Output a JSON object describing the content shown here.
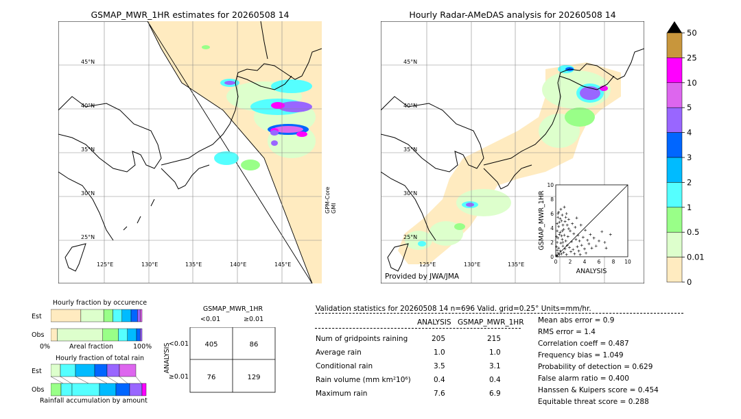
{
  "left_map": {
    "title": "GSMAP_MWR_1HR estimates for 20260508 14",
    "lat_labels": [
      "45°N",
      "40°N",
      "35°N",
      "30°N",
      "25°N"
    ],
    "lon_labels": [
      "125°E",
      "130°E",
      "135°E",
      "140°E",
      "145°E"
    ],
    "side_label_1": "GPM-Core",
    "side_label_2": "GMI"
  },
  "right_map": {
    "title": "Hourly Radar-AMeDAS analysis for 20260508 14",
    "lat_labels": [
      "45°N",
      "40°N",
      "35°N",
      "30°N",
      "25°N"
    ],
    "lon_labels": [
      "125°E",
      "130°E",
      "135°E"
    ],
    "credit": "Provided by JWA/JMA"
  },
  "colorbar": {
    "labels": [
      "50",
      "25",
      "10",
      "5",
      "4",
      "3",
      "2",
      "1",
      "0.5",
      "0.01",
      "0"
    ],
    "colors": [
      "#c8963c",
      "#ff00ff",
      "#dd66ee",
      "#9966ff",
      "#0066ff",
      "#00bbff",
      "#55ffff",
      "#99ff88",
      "#ddffcc",
      "#ffebc0"
    ]
  },
  "palette": {
    "land_outline": "#000000",
    "no_coverage": "#ffffff",
    "c001": "#ffebc0",
    "c05": "#ddffcc",
    "c1": "#99ff88",
    "c2": "#55ffff",
    "c3": "#00bbff",
    "c4": "#0066ff",
    "c5": "#9966ff",
    "c10": "#dd66ee",
    "c25": "#ff00ff",
    "c50": "#c8963c"
  },
  "scatter": {
    "xlabel": "ANALYSIS",
    "ylabel": "GSMAP_MWR_1HR",
    "ticks": [
      "0",
      "2",
      "4",
      "6",
      "8",
      "10"
    ],
    "xlim": [
      0,
      10
    ],
    "ylim": [
      0,
      10
    ]
  },
  "fraction_occurrence": {
    "title": "Hourly fraction by occurence",
    "rows": [
      "Est",
      "Obs"
    ],
    "axis_left": "0%",
    "axis_mid": "Areal fraction",
    "axis_right": "100%",
    "est_segments": [
      0.33,
      0.25,
      0.1,
      0.1,
      0.1,
      0.07,
      0.03,
      0.02
    ],
    "obs_segments": [
      0.07,
      0.5,
      0.17,
      0.1,
      0.1,
      0.04,
      0.02
    ]
  },
  "fraction_total": {
    "title": "Hourly fraction of total rain",
    "rows": [
      "Est",
      "Obs"
    ],
    "footer": "Rainfall accumulation by amount"
  },
  "contingency": {
    "title": "GSMAP_MWR_1HR",
    "col_lt": "<0.01",
    "col_ge": "≥0.01",
    "row_lt": "<0.01",
    "row_ge": "≥0.01",
    "side_label": "ANALYSIS",
    "cells": [
      "405",
      "86",
      "76",
      "129"
    ]
  },
  "validation": {
    "header": "Validation statistics for 20260508 14  n=696 Valid. grid=0.25° Units=mm/hr.",
    "col_analysis": "ANALYSIS",
    "col_gsmap": "GSMAP_MWR_1HR",
    "rows": [
      {
        "label": "Num of gridpoints raining",
        "analysis": "205",
        "gsmap": "215"
      },
      {
        "label": "Average rain",
        "analysis": "1.0",
        "gsmap": "1.0"
      },
      {
        "label": "Conditional rain",
        "analysis": "3.5",
        "gsmap": "3.1"
      },
      {
        "label": "Rain volume (mm km²10⁶)",
        "analysis": "0.4",
        "gsmap": "0.4"
      },
      {
        "label": "Maximum rain",
        "analysis": "7.6",
        "gsmap": "6.9"
      }
    ],
    "scores": [
      "Mean abs error =    0.9",
      "RMS error =    1.4",
      "Correlation coeff =  0.487",
      "Frequency bias =  1.049",
      "Probability of detection =  0.629",
      "False alarm ratio =  0.400",
      "Hanssen & Kuipers score =  0.454",
      "Equitable threat score =  0.288"
    ]
  },
  "chart_data": {
    "type": "scatter",
    "xlabel": "ANALYSIS",
    "ylabel": "GSMAP_MWR_1HR",
    "xlim": [
      0,
      10
    ],
    "ylim": [
      0,
      10
    ],
    "points": [
      [
        0.1,
        0.2
      ],
      [
        0.2,
        0.1
      ],
      [
        0.3,
        0.5
      ],
      [
        0.5,
        0.3
      ],
      [
        0.4,
        1.2
      ],
      [
        0.6,
        0.8
      ],
      [
        0.8,
        0.4
      ],
      [
        1.0,
        1.5
      ],
      [
        0.2,
        2.0
      ],
      [
        0.3,
        2.6
      ],
      [
        0.5,
        3.1
      ],
      [
        0.7,
        1.9
      ],
      [
        0.9,
        2.4
      ],
      [
        1.1,
        0.6
      ],
      [
        1.3,
        1.1
      ],
      [
        1.5,
        0.3
      ],
      [
        0.2,
        3.6
      ],
      [
        0.4,
        4.2
      ],
      [
        0.6,
        3.4
      ],
      [
        0.8,
        5.0
      ],
      [
        1.0,
        4.4
      ],
      [
        1.2,
        3.0
      ],
      [
        1.4,
        2.2
      ],
      [
        1.6,
        1.6
      ],
      [
        0.3,
        5.5
      ],
      [
        0.5,
        4.8
      ],
      [
        0.9,
        5.8
      ],
      [
        1.1,
        3.8
      ],
      [
        1.3,
        4.9
      ],
      [
        1.7,
        2.8
      ],
      [
        1.9,
        1.3
      ],
      [
        2.1,
        0.7
      ],
      [
        0.4,
        6.2
      ],
      [
        0.7,
        6.6
      ],
      [
        1.5,
        6.0
      ],
      [
        1.8,
        5.2
      ],
      [
        2.0,
        3.6
      ],
      [
        2.2,
        2.1
      ],
      [
        2.4,
        1.0
      ],
      [
        2.6,
        0.4
      ],
      [
        1.2,
        6.9
      ],
      [
        1.6,
        4.4
      ],
      [
        2.3,
        4.6
      ],
      [
        2.5,
        3.2
      ],
      [
        2.8,
        2.4
      ],
      [
        3.0,
        1.4
      ],
      [
        3.2,
        0.8
      ],
      [
        3.4,
        0.3
      ],
      [
        0.2,
        0.9
      ],
      [
        0.1,
        1.4
      ],
      [
        0.1,
        2.8
      ],
      [
        0.2,
        4.6
      ],
      [
        0.3,
        6.0
      ],
      [
        0.6,
        5.3
      ],
      [
        0.8,
        2.9
      ],
      [
        1.0,
        2.0
      ],
      [
        2.7,
        4.1
      ],
      [
        2.9,
        5.4
      ],
      [
        3.1,
        3.0
      ],
      [
        3.3,
        2.2
      ],
      [
        3.6,
        1.6
      ],
      [
        3.8,
        2.7
      ],
      [
        4.0,
        1.1
      ],
      [
        4.2,
        0.5
      ],
      [
        4.4,
        2.3
      ],
      [
        4.6,
        1.8
      ],
      [
        4.8,
        3.1
      ],
      [
        5.0,
        1.2
      ],
      [
        5.3,
        2.6
      ],
      [
        5.6,
        1.5
      ],
      [
        6.0,
        2.2
      ],
      [
        6.4,
        3.5
      ],
      [
        6.8,
        2.0
      ],
      [
        7.0,
        1.2
      ],
      [
        7.6,
        3.1
      ],
      [
        3.5,
        4.4
      ],
      [
        4.1,
        3.7
      ],
      [
        1.4,
        5.5
      ],
      [
        1.8,
        3.9
      ],
      [
        0.9,
        3.6
      ]
    ]
  }
}
